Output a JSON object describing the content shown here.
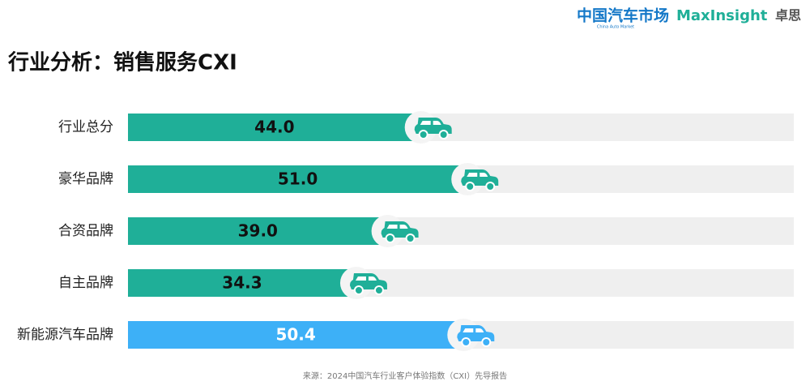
{
  "header": {
    "logo_cn": "中国汽车市场",
    "logo_en": "China Auto Market",
    "brand": "MaxInsight",
    "brand_cn": "卓思"
  },
  "chart_data": {
    "type": "bar",
    "orientation": "horizontal",
    "title": "行业分析：销售服务CXI",
    "categories": [
      "行业总分",
      "豪华品牌",
      "合资品牌",
      "自主品牌",
      "新能源汽车品牌"
    ],
    "values": [
      44.0,
      51.0,
      39.0,
      34.3,
      50.4
    ],
    "value_labels": [
      "44.0",
      "51.0",
      "39.0",
      "34.3",
      "50.4"
    ],
    "colors": [
      "#1faf98",
      "#1faf98",
      "#1faf98",
      "#1faf98",
      "#3db0f7"
    ],
    "xlim": [
      0,
      100
    ],
    "source": "来源：2024中国汽车行业客户体验指数（CXI）先导报告"
  }
}
